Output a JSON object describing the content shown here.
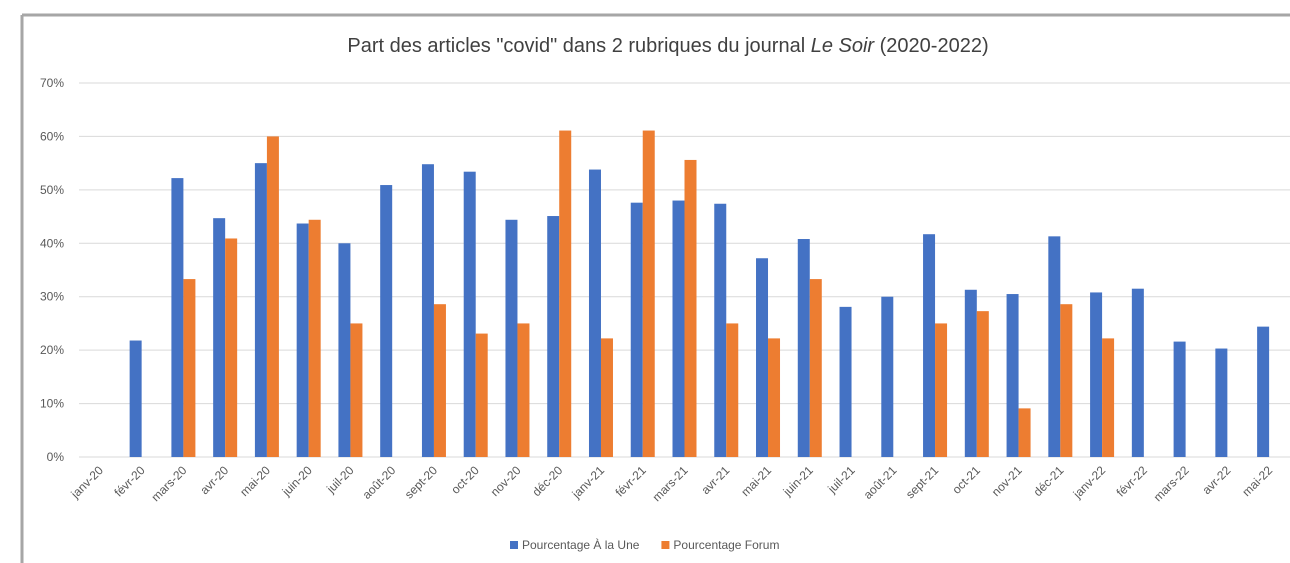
{
  "chart_data": {
    "type": "bar",
    "title": [
      "Part des articles \"covid\" dans 2 rubriques du journal ",
      "Le Soir",
      " (2020-2022)"
    ],
    "categories": [
      "janv-20",
      "févr-20",
      "mars-20",
      "avr-20",
      "mai-20",
      "juin-20",
      "juil-20",
      "août-20",
      "sept-20",
      "oct-20",
      "nov-20",
      "déc-20",
      "janv-21",
      "févr-21",
      "mars-21",
      "avr-21",
      "mai-21",
      "juin-21",
      "juil-21",
      "août-21",
      "sept-21",
      "oct-21",
      "nov-21",
      "déc-21",
      "janv-22",
      "févr-22",
      "mars-22",
      "avr-22",
      "mai-22"
    ],
    "series": [
      {
        "name": "Pourcentage À la Une",
        "color": "#4472c4",
        "values": [
          null,
          21.8,
          52.2,
          44.7,
          55,
          43.7,
          40,
          50.9,
          54.8,
          53.4,
          44.4,
          45.1,
          53.8,
          47.6,
          48,
          47.4,
          37.2,
          40.8,
          28.1,
          30,
          41.7,
          31.3,
          30.5,
          41.3,
          30.8,
          31.5,
          21.6,
          20.3,
          24.4
        ]
      },
      {
        "name": "Pourcentage Forum",
        "color": "#ed7d31",
        "values": [
          null,
          null,
          33.3,
          40.9,
          60,
          44.4,
          25,
          null,
          28.6,
          23.1,
          25,
          61.1,
          22.2,
          61.1,
          55.6,
          25,
          22.2,
          33.3,
          null,
          null,
          25,
          27.3,
          9.1,
          28.6,
          22.2,
          null,
          null,
          null,
          null
        ]
      }
    ],
    "ylim": [
      0,
      70
    ],
    "yticks": [
      {
        "value": 0,
        "label": "0%"
      },
      {
        "value": 10,
        "label": "10%"
      },
      {
        "value": 20,
        "label": "20%"
      },
      {
        "value": 30,
        "label": "30%"
      },
      {
        "value": 40,
        "label": "40%"
      },
      {
        "value": 50,
        "label": "50%"
      },
      {
        "value": 60,
        "label": "60%"
      },
      {
        "value": 70,
        "label": "70%"
      }
    ],
    "grid": true,
    "legend": "bottom"
  }
}
